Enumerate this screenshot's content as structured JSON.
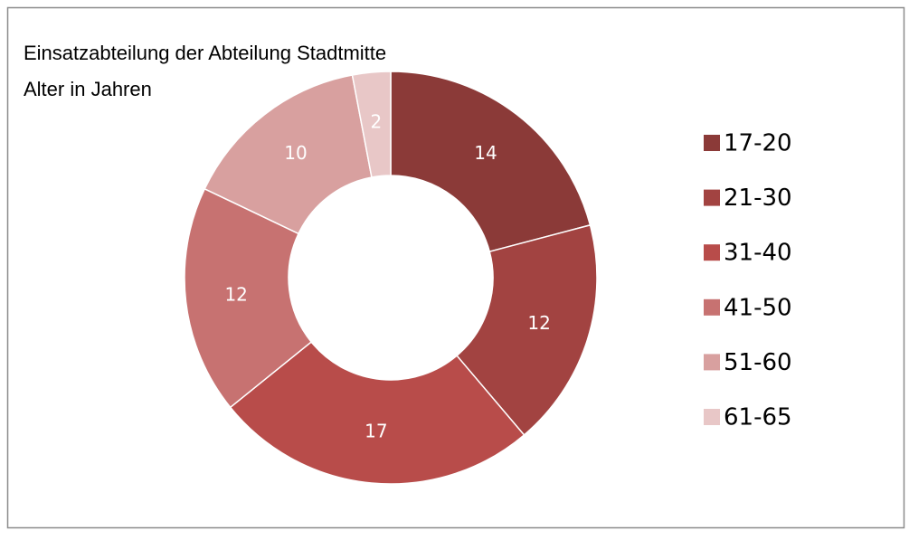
{
  "chart_data": {
    "type": "donut",
    "title": "Einsatzabteilung der Abteilung Stadtmitte",
    "subtitle": "Alter in Jahren",
    "categories": [
      "17-20",
      "21-30",
      "31-40",
      "41-50",
      "51-60",
      "61-65"
    ],
    "values": [
      14,
      12,
      17,
      12,
      10,
      2
    ],
    "colors": [
      "#8b3a38",
      "#a24341",
      "#b84c4a",
      "#c77271",
      "#d8a09f",
      "#e8c7c7"
    ],
    "legend": "right"
  }
}
